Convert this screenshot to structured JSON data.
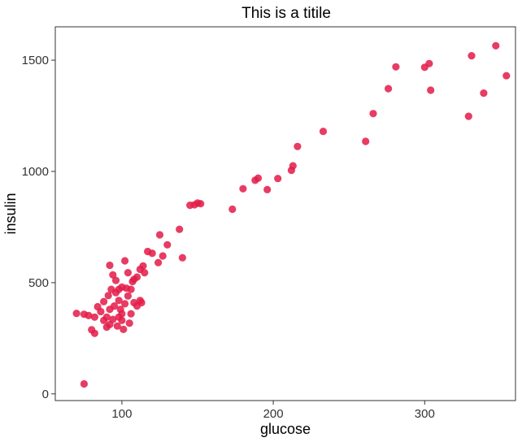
{
  "chart_data": {
    "type": "scatter",
    "title": "This is a titile",
    "xlabel": "glucose",
    "ylabel": "insulin",
    "xlim": [
      56,
      360
    ],
    "ylim": [
      -30,
      1650
    ],
    "x_ticks": [
      100,
      200,
      300
    ],
    "y_ticks": [
      0,
      500,
      1000,
      1500
    ],
    "x_tick_labels": [
      "100",
      "200",
      "300"
    ],
    "y_tick_labels": [
      "0",
      "500",
      "1000",
      "1500"
    ],
    "grid": false,
    "point_color": "#e31a48",
    "series": [
      {
        "points": [
          [
            75,
            45
          ],
          [
            70,
            362
          ],
          [
            75,
            358
          ],
          [
            78,
            352
          ],
          [
            80,
            288
          ],
          [
            82,
            272
          ],
          [
            82,
            345
          ],
          [
            84,
            392
          ],
          [
            86,
            370
          ],
          [
            88,
            415
          ],
          [
            88,
            330
          ],
          [
            90,
            300
          ],
          [
            90,
            345
          ],
          [
            91,
            442
          ],
          [
            92,
            312
          ],
          [
            93,
            470
          ],
          [
            92,
            380
          ],
          [
            94,
            335
          ],
          [
            95,
            395
          ],
          [
            96,
            455
          ],
          [
            97,
            305
          ],
          [
            98,
            345
          ],
          [
            98,
            420
          ],
          [
            99,
            380
          ],
          [
            100,
            360
          ],
          [
            100,
            330
          ],
          [
            101,
            290
          ],
          [
            102,
            405
          ],
          [
            103,
            475
          ],
          [
            104,
            440
          ],
          [
            105,
            318
          ],
          [
            106,
            360
          ],
          [
            107,
            505
          ],
          [
            108,
            515
          ],
          [
            110,
            525
          ],
          [
            112,
            560
          ],
          [
            114,
            575
          ],
          [
            115,
            545
          ],
          [
            117,
            640
          ],
          [
            120,
            632
          ],
          [
            92,
            578
          ],
          [
            94,
            535
          ],
          [
            96,
            510
          ],
          [
            98,
            470
          ],
          [
            100,
            480
          ],
          [
            102,
            598
          ],
          [
            104,
            545
          ],
          [
            106,
            470
          ],
          [
            108,
            410
          ],
          [
            110,
            395
          ],
          [
            112,
            420
          ],
          [
            113,
            410
          ],
          [
            124,
            590
          ],
          [
            125,
            715
          ],
          [
            127,
            620
          ],
          [
            130,
            670
          ],
          [
            138,
            740
          ],
          [
            140,
            612
          ],
          [
            145,
            848
          ],
          [
            148,
            850
          ],
          [
            150,
            858
          ],
          [
            152,
            855
          ],
          [
            173,
            830
          ],
          [
            180,
            922
          ],
          [
            188,
            960
          ],
          [
            190,
            970
          ],
          [
            196,
            918
          ],
          [
            203,
            968
          ],
          [
            212,
            1005
          ],
          [
            213,
            1025
          ],
          [
            216,
            1112
          ],
          [
            233,
            1180
          ],
          [
            261,
            1135
          ],
          [
            266,
            1260
          ],
          [
            276,
            1372
          ],
          [
            281,
            1470
          ],
          [
            300,
            1468
          ],
          [
            303,
            1485
          ],
          [
            304,
            1365
          ],
          [
            329,
            1248
          ],
          [
            331,
            1520
          ],
          [
            339,
            1352
          ],
          [
            347,
            1565
          ],
          [
            354,
            1430
          ]
        ]
      }
    ]
  }
}
